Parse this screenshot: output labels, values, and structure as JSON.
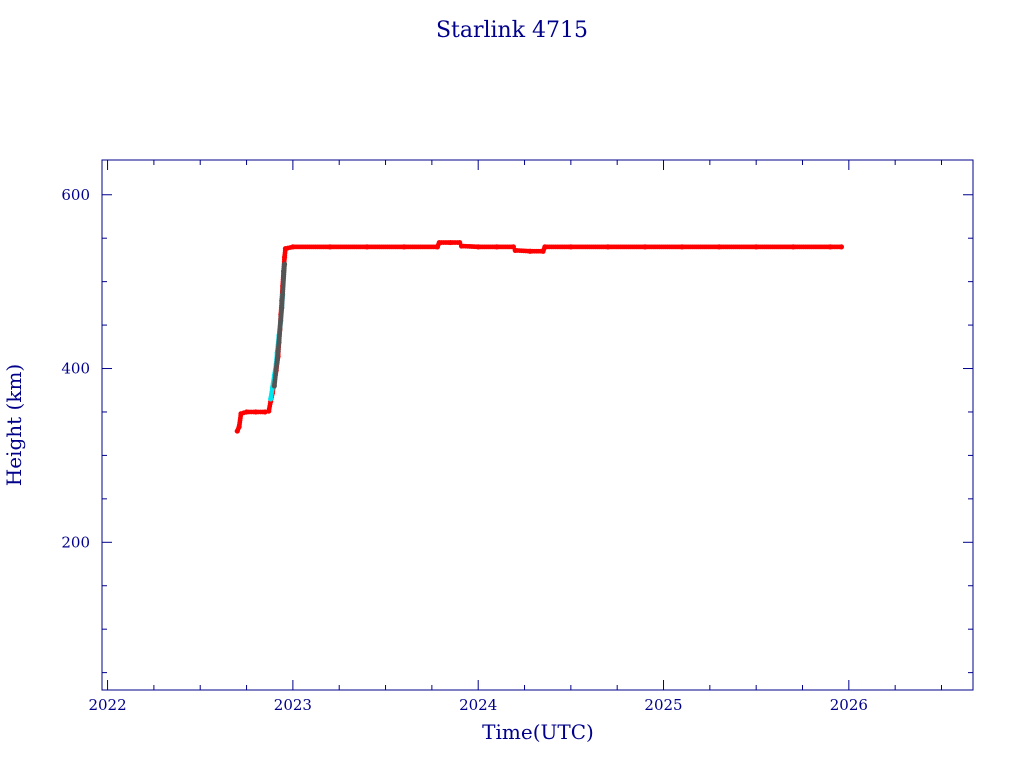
{
  "chart_data": {
    "type": "scatter",
    "title": "Starlink 4715",
    "xlabel": "Time(UTC)",
    "ylabel": "Height (km)",
    "xlim": [
      2021.97,
      2026.67
    ],
    "ylim": [
      30,
      640
    ],
    "x_ticks": [
      2022,
      2023,
      2024,
      2025,
      2026
    ],
    "x_tick_labels": [
      "2022",
      "2023",
      "2024",
      "2025",
      "2026"
    ],
    "y_ticks": [
      200,
      400,
      600
    ],
    "y_tick_labels": [
      "200",
      "400",
      "600"
    ],
    "grid": false,
    "legend": "none",
    "colors": {
      "axis": "#00008b",
      "primary": "#ff0000",
      "secondary": "#00e5ee",
      "dark": "#555555"
    },
    "series": [
      {
        "color": "#ff0000",
        "points": [
          [
            2022.7,
            328
          ],
          [
            2022.71,
            333
          ],
          [
            2022.72,
            348
          ],
          [
            2022.75,
            350
          ],
          [
            2022.8,
            350
          ],
          [
            2022.85,
            350
          ],
          [
            2022.87,
            351
          ],
          [
            2022.88,
            362
          ],
          [
            2022.89,
            372
          ],
          [
            2022.9,
            385
          ],
          [
            2022.91,
            398
          ],
          [
            2022.92,
            414
          ],
          [
            2022.925,
            430
          ],
          [
            2022.93,
            445
          ],
          [
            2022.935,
            462
          ],
          [
            2022.94,
            478
          ],
          [
            2022.945,
            495
          ],
          [
            2022.95,
            512
          ],
          [
            2022.955,
            528
          ],
          [
            2022.96,
            538
          ],
          [
            2023.0,
            540
          ],
          [
            2023.2,
            540
          ],
          [
            2023.4,
            540
          ],
          [
            2023.6,
            540
          ],
          [
            2023.78,
            540
          ],
          [
            2023.79,
            545
          ],
          [
            2023.85,
            545
          ],
          [
            2023.9,
            545
          ],
          [
            2023.91,
            541
          ],
          [
            2024.0,
            540
          ],
          [
            2024.1,
            540
          ],
          [
            2024.19,
            540
          ],
          [
            2024.2,
            536
          ],
          [
            2024.28,
            535
          ],
          [
            2024.35,
            535
          ],
          [
            2024.36,
            540
          ],
          [
            2024.5,
            540
          ],
          [
            2024.7,
            540
          ],
          [
            2024.9,
            540
          ],
          [
            2025.1,
            540
          ],
          [
            2025.3,
            540
          ],
          [
            2025.5,
            540
          ],
          [
            2025.7,
            540
          ],
          [
            2025.9,
            540
          ],
          [
            2025.96,
            540
          ]
        ]
      },
      {
        "color": "#00e5ee",
        "points": [
          [
            2022.88,
            365
          ],
          [
            2022.89,
            378
          ],
          [
            2022.9,
            392
          ],
          [
            2022.91,
            405
          ],
          [
            2022.915,
            418
          ],
          [
            2022.925,
            438
          ],
          [
            2022.935,
            455
          ],
          [
            2022.945,
            485
          ]
        ]
      },
      {
        "color": "#555555",
        "points": [
          [
            2022.9,
            380
          ],
          [
            2022.92,
            420
          ],
          [
            2022.94,
            470
          ],
          [
            2022.955,
            520
          ]
        ]
      }
    ]
  }
}
